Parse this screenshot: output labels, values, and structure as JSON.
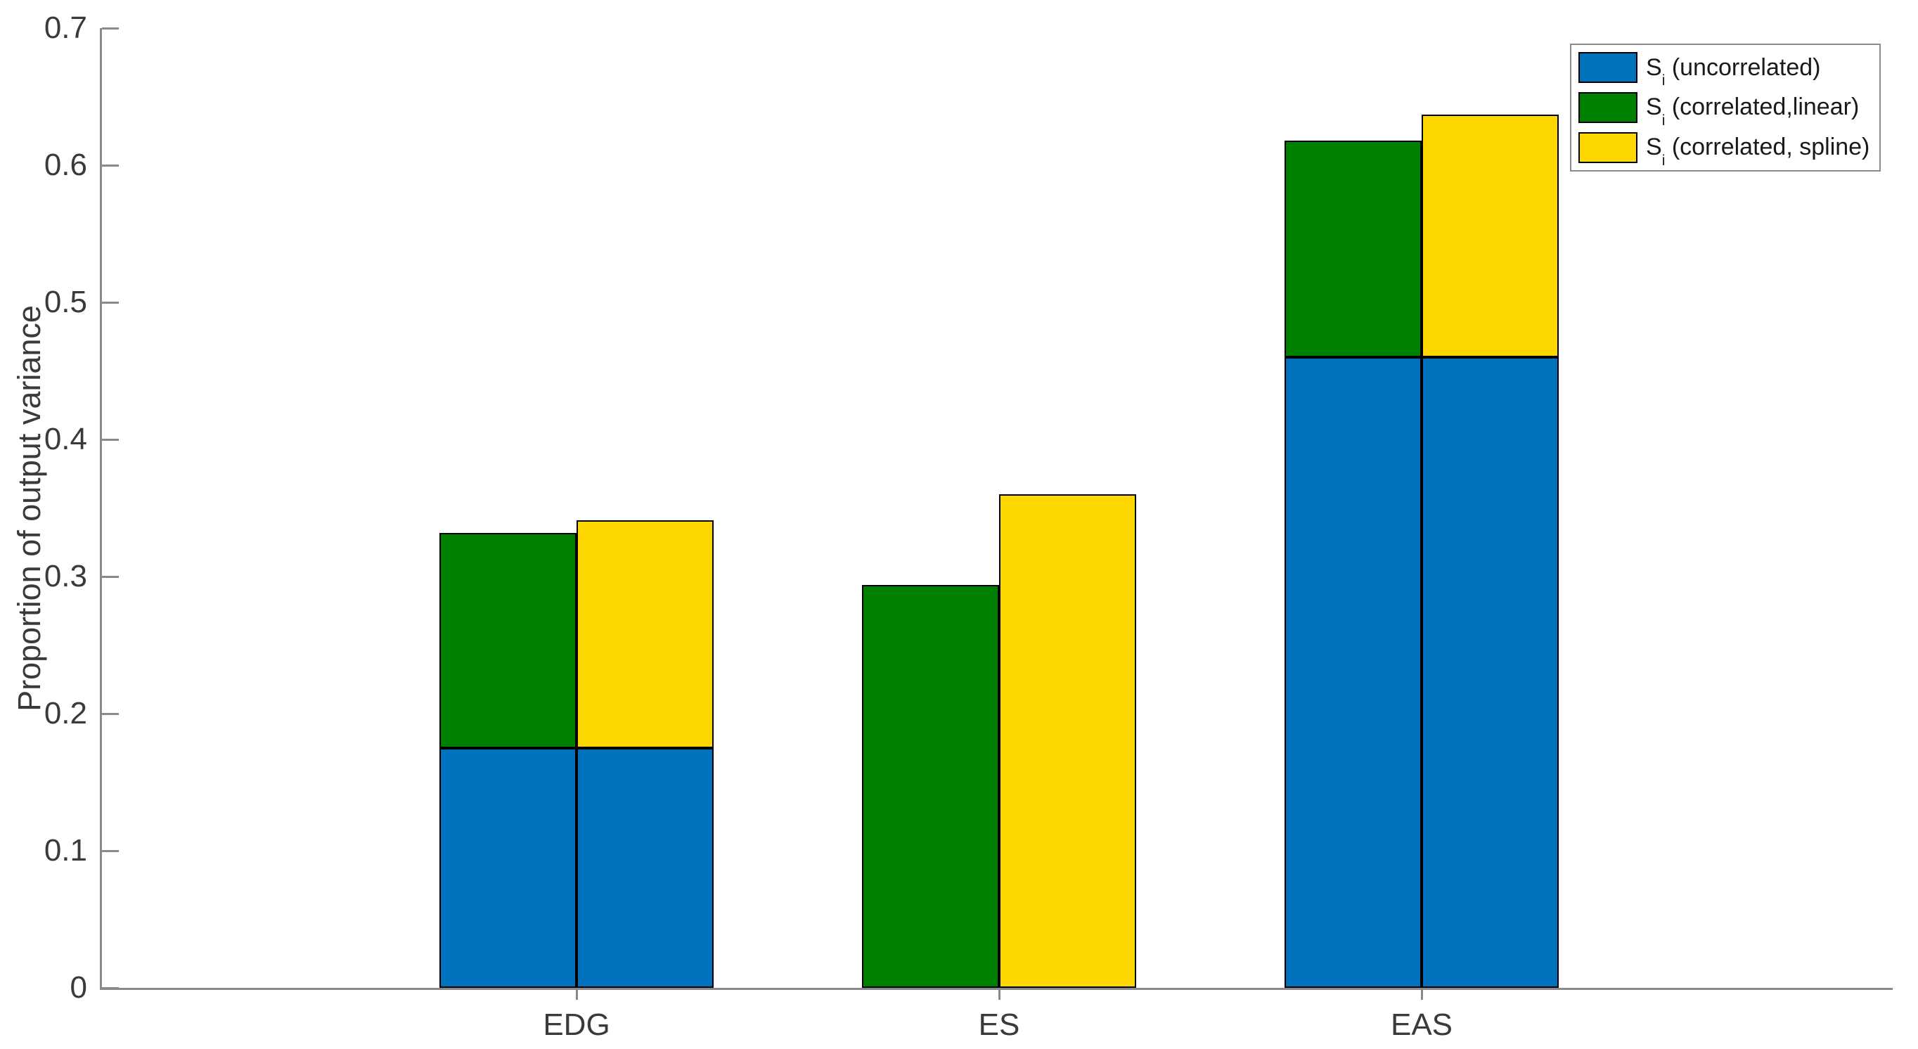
{
  "chart_data": {
    "type": "bar",
    "subtype": "grouped-stacked",
    "title": "",
    "xlabel": "",
    "ylabel": "Proportion of output variance",
    "ylim": [
      0,
      0.7
    ],
    "y_tick_values": [
      0,
      0.1,
      0.2,
      0.3,
      0.4,
      0.5,
      0.6,
      0.7
    ],
    "y_tick_labels": [
      "0",
      "0.1",
      "0.2",
      "0.3",
      "0.4",
      "0.5",
      "0.6",
      "0.7"
    ],
    "grid": "off",
    "categories": [
      "EDG",
      "ES",
      "EAS"
    ],
    "series": [
      {
        "key": "uncorrelated",
        "name": "Si (uncorrelated)",
        "color": "#0072BD",
        "values": [
          0.175,
          0.0,
          0.46
        ]
      },
      {
        "key": "correlated_linear",
        "name": "Si (correlated,linear)",
        "color": "#008000",
        "values": [
          0.157,
          0.294,
          0.158
        ]
      },
      {
        "key": "correlated_spline",
        "name": "Si (correlated, spline)",
        "color": "#FFD700",
        "values": [
          0.166,
          0.36,
          0.177
        ]
      }
    ],
    "bar_composition": {
      "left_bar": [
        "uncorrelated",
        "correlated_linear"
      ],
      "right_bar": [
        "uncorrelated",
        "correlated_spline"
      ]
    },
    "bar_totals": {
      "correlated_linear_bar": [
        0.332,
        0.294,
        0.618
      ],
      "correlated_spline_bar": [
        0.341,
        0.36,
        0.637
      ]
    },
    "legend": {
      "position": "top-right",
      "entries": [
        {
          "prefix": "S",
          "sub": "i",
          "rest": " (uncorrelated)",
          "color": "#0072BD"
        },
        {
          "prefix": "S",
          "sub": "i",
          "rest": " (correlated,linear)",
          "color": "#008000"
        },
        {
          "prefix": "S",
          "sub": "i",
          "rest": " (correlated, spline)",
          "color": "#FFD700"
        }
      ]
    },
    "colors": {
      "axis": "#8a8a8e",
      "tick_text": "#3a3a3c",
      "bar_edge": "#000000",
      "background": "#ffffff"
    }
  }
}
